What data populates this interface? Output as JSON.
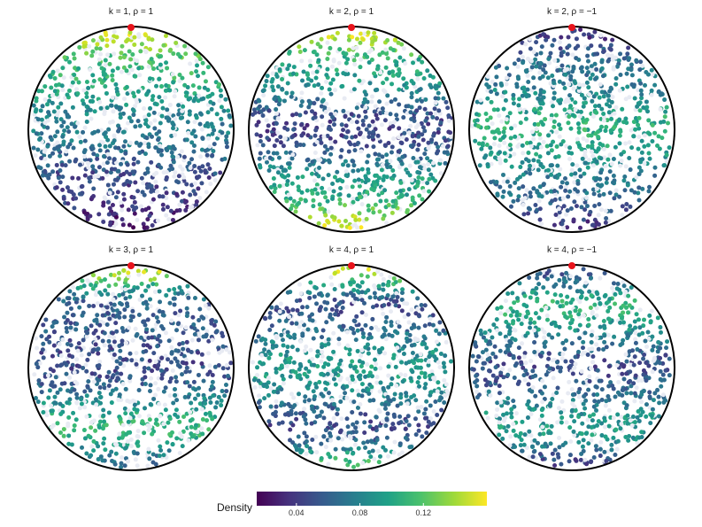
{
  "chart_data": [
    {
      "type": "scatter",
      "title": "k = 1,  ρ = 1",
      "k": 1,
      "rho": 1,
      "density_profile": {
        "top": 0.155,
        "upper_band": 0.11,
        "middle": 0.075,
        "lower": 0.045,
        "bottom": 0.025
      },
      "marked_point": {
        "position": "north pole",
        "color": "#e8141c"
      }
    },
    {
      "type": "scatter",
      "title": "k = 2,  ρ = 1",
      "k": 2,
      "rho": 1,
      "density_profile": {
        "top": 0.155,
        "upper_band": 0.1,
        "middle": 0.045,
        "lower_band": 0.1,
        "bottom": 0.155
      },
      "marked_point": {
        "position": "north pole",
        "color": "#e8141c"
      }
    },
    {
      "type": "scatter",
      "title": "k = 2,  ρ = −1",
      "k": 2,
      "rho": -1,
      "density_profile": {
        "top": 0.035,
        "upper_band": 0.07,
        "middle": 0.105,
        "lower_band": 0.07,
        "bottom": 0.035
      },
      "marked_point": {
        "position": "north pole",
        "color": "#e8141c"
      }
    },
    {
      "type": "scatter",
      "title": "k = 3,  ρ = 1",
      "k": 3,
      "rho": 1,
      "density_profile": {
        "top": 0.15,
        "upper_band": 0.06,
        "middle": 0.05,
        "lower_band": 0.11,
        "bottom": 0.06
      },
      "marked_point": {
        "position": "north pole",
        "color": "#e8141c"
      }
    },
    {
      "type": "scatter",
      "title": "k = 4,  ρ = 1",
      "k": 4,
      "rho": 1,
      "density_profile": {
        "top": 0.15,
        "upper_band": 0.05,
        "middle": 0.095,
        "lower_band": 0.05,
        "bottom": 0.12
      },
      "marked_point": {
        "position": "north pole",
        "color": "#e8141c"
      }
    },
    {
      "type": "scatter",
      "title": "k = 4,  ρ = −1",
      "k": 4,
      "rho": -1,
      "density_profile": {
        "top": 0.045,
        "upper_band": 0.105,
        "middle": 0.05,
        "lower_band": 0.095,
        "bottom": 0.04
      },
      "marked_point": {
        "position": "north pole",
        "color": "#e8141c"
      }
    }
  ],
  "legend": {
    "title": "Density",
    "colormap": "viridis",
    "range": [
      0.015,
      0.16
    ],
    "ticks": [
      {
        "value": 0.04,
        "label": "0.04"
      },
      {
        "value": 0.08,
        "label": "0.08"
      },
      {
        "value": 0.12,
        "label": "0.12"
      }
    ],
    "placement": "bottom-center"
  },
  "colors": {
    "circle_outline": "#000000",
    "marked_point": "#e8141c",
    "hidden_point": "#e8ebf3"
  }
}
